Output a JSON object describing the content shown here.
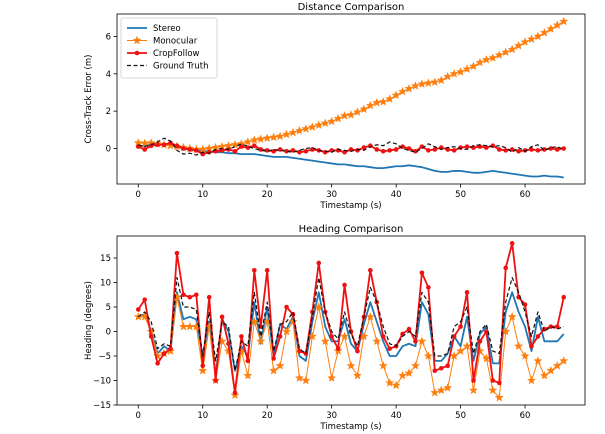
{
  "chart_data": [
    {
      "type": "line",
      "title": "Distance Comparison",
      "xlabel": "Timestamp (s)",
      "ylabel": "Cross-Track Error (m)",
      "xlim": [
        -3.3,
        69.3
      ],
      "ylim": [
        -1.9,
        7.2
      ],
      "xticks": [
        0,
        10,
        20,
        30,
        40,
        50,
        60
      ],
      "yticks": [
        0,
        2,
        4,
        6
      ],
      "grid": false,
      "legend": "top-left",
      "x": [
        0,
        1,
        2,
        3,
        4,
        5,
        6,
        7,
        8,
        9,
        10,
        11,
        12,
        13,
        14,
        15,
        16,
        17,
        18,
        19,
        20,
        21,
        22,
        23,
        24,
        25,
        26,
        27,
        28,
        29,
        30,
        31,
        32,
        33,
        34,
        35,
        36,
        37,
        38,
        39,
        40,
        41,
        42,
        43,
        44,
        45,
        46,
        47,
        48,
        49,
        50,
        51,
        52,
        53,
        54,
        55,
        56,
        57,
        58,
        59,
        60,
        61,
        62,
        63,
        64,
        65,
        66
      ],
      "series": [
        {
          "name": "Stereo",
          "color": "#1f77b4",
          "marker": "none",
          "dash": "solid",
          "width": 1.8,
          "values": [
            0.1,
            0.15,
            0.2,
            0.2,
            0.25,
            0.2,
            0.1,
            0.0,
            -0.05,
            -0.1,
            -0.15,
            -0.15,
            -0.2,
            -0.2,
            -0.25,
            -0.25,
            -0.3,
            -0.3,
            -0.3,
            -0.35,
            -0.4,
            -0.45,
            -0.45,
            -0.45,
            -0.5,
            -0.55,
            -0.6,
            -0.65,
            -0.7,
            -0.75,
            -0.8,
            -0.85,
            -0.85,
            -0.9,
            -0.95,
            -0.95,
            -1.0,
            -1.05,
            -1.05,
            -1.0,
            -0.95,
            -0.95,
            -0.9,
            -0.95,
            -1.0,
            -1.1,
            -1.2,
            -1.25,
            -1.25,
            -1.2,
            -1.2,
            -1.25,
            -1.3,
            -1.3,
            -1.25,
            -1.2,
            -1.25,
            -1.3,
            -1.35,
            -1.4,
            -1.45,
            -1.5,
            -1.5,
            -1.45,
            -1.5,
            -1.5,
            -1.55
          ]
        },
        {
          "name": "Monocular",
          "color": "#ff7f0e",
          "marker": "star",
          "dash": "solid",
          "width": 1.0,
          "values": [
            0.3,
            0.28,
            0.3,
            0.25,
            0.2,
            0.15,
            0.1,
            0.05,
            0.0,
            -0.05,
            -0.05,
            0.0,
            0.05,
            0.1,
            0.15,
            0.2,
            0.25,
            0.35,
            0.45,
            0.5,
            0.55,
            0.6,
            0.65,
            0.75,
            0.85,
            0.95,
            1.05,
            1.15,
            1.25,
            1.35,
            1.45,
            1.6,
            1.75,
            1.8,
            1.95,
            2.1,
            2.3,
            2.45,
            2.5,
            2.65,
            2.85,
            3.05,
            3.2,
            3.35,
            3.45,
            3.5,
            3.55,
            3.65,
            3.85,
            4.0,
            4.1,
            4.25,
            4.4,
            4.6,
            4.75,
            4.85,
            5.0,
            5.15,
            5.3,
            5.5,
            5.7,
            5.85,
            6.0,
            6.2,
            6.4,
            6.6,
            6.8
          ]
        },
        {
          "name": "CropFollow",
          "color": "#ee1111",
          "marker": "circle",
          "dash": "solid",
          "width": 1.8,
          "values": [
            0.1,
            -0.05,
            0.15,
            0.2,
            0.2,
            0.3,
            0.15,
            0.0,
            -0.05,
            -0.1,
            -0.3,
            -0.2,
            -0.15,
            -0.1,
            -0.05,
            -0.15,
            0.1,
            0.05,
            0.15,
            -0.05,
            -0.1,
            -0.15,
            -0.05,
            -0.15,
            -0.1,
            -0.2,
            -0.15,
            -0.05,
            -0.1,
            -0.2,
            -0.1,
            -0.1,
            -0.2,
            -0.05,
            -0.1,
            0.05,
            0.15,
            -0.05,
            -0.15,
            -0.1,
            -0.05,
            0.1,
            0.0,
            -0.15,
            0.1,
            -0.1,
            -0.05,
            0.05,
            -0.05,
            -0.1,
            0.05,
            0.1,
            0.05,
            0.1,
            0.05,
            0.15,
            -0.05,
            -0.1,
            -0.05,
            -0.15,
            -0.1,
            -0.05,
            -0.1,
            -0.05,
            0.0,
            -0.05,
            0.0
          ]
        },
        {
          "name": "Ground Truth",
          "color": "#111111",
          "marker": "none",
          "dash": "dashed",
          "width": 1.2,
          "values": [
            0.2,
            0.1,
            0.2,
            0.35,
            0.55,
            0.4,
            -0.1,
            -0.3,
            -0.25,
            -0.35,
            -0.2,
            -0.25,
            -0.05,
            0.0,
            -0.05,
            0.1,
            0.25,
            0.1,
            0.0,
            -0.1,
            -0.15,
            -0.05,
            -0.1,
            -0.15,
            -0.2,
            -0.1,
            0.0,
            0.05,
            -0.1,
            -0.15,
            -0.2,
            -0.05,
            -0.1,
            -0.15,
            -0.05,
            -0.1,
            0.1,
            0.2,
            0.15,
            0.35,
            0.25,
            0.0,
            -0.1,
            -0.2,
            0.0,
            0.25,
            0.1,
            -0.05,
            0.05,
            0.1,
            0.0,
            -0.05,
            0.15,
            0.2,
            0.15,
            0.1,
            0.15,
            0.05,
            -0.2,
            0.05,
            -0.15,
            0.1,
            0.2,
            -0.1,
            0.05,
            0.1,
            -0.05
          ]
        }
      ]
    },
    {
      "type": "line",
      "title": "Heading Comparison",
      "xlabel": "Timestamp (s)",
      "ylabel": "Heading (degrees)",
      "xlim": [
        -3.3,
        69.3
      ],
      "ylim": [
        -15,
        19.5
      ],
      "xticks": [
        0,
        10,
        20,
        30,
        40,
        50,
        60
      ],
      "yticks": [
        -15,
        -10,
        -5,
        0,
        5,
        10,
        15
      ],
      "grid": false,
      "legend": "none",
      "x": [
        0,
        1,
        2,
        3,
        4,
        5,
        6,
        7,
        8,
        9,
        10,
        11,
        12,
        13,
        14,
        15,
        16,
        17,
        18,
        19,
        20,
        21,
        22,
        23,
        24,
        25,
        26,
        27,
        28,
        29,
        30,
        31,
        32,
        33,
        34,
        35,
        36,
        37,
        38,
        39,
        40,
        41,
        42,
        43,
        44,
        45,
        46,
        47,
        48,
        49,
        50,
        51,
        52,
        53,
        54,
        55,
        56,
        57,
        58,
        59,
        60,
        61,
        62,
        63,
        64,
        65,
        66
      ],
      "series": [
        {
          "name": "Stereo",
          "color": "#1f77b4",
          "marker": "none",
          "dash": "solid",
          "width": 1.8,
          "values": [
            3,
            3.5,
            0,
            -4.5,
            -3,
            -4,
            8,
            2.5,
            3,
            2.5,
            -5,
            2,
            -9,
            2.5,
            0,
            -8,
            -3,
            -5,
            6,
            -2.5,
            5,
            -5,
            1.5,
            0.5,
            3,
            -5,
            -6,
            2,
            8,
            1,
            -2,
            -2,
            2.5,
            -2.5,
            -4,
            1.5,
            6,
            2,
            -2,
            -5,
            -5,
            -3,
            -2.5,
            -3,
            6,
            3.5,
            -6,
            -6,
            -4.5,
            -1,
            -3,
            3,
            -6,
            -0.5,
            1,
            -6.5,
            -6.5,
            4,
            8,
            4,
            1,
            -4,
            3,
            -2,
            -2,
            -2,
            -0.5
          ]
        },
        {
          "name": "Monocular",
          "color": "#ff7f0e",
          "marker": "star",
          "dash": "solid",
          "width": 1.0,
          "values": [
            3,
            3,
            0,
            -5,
            -4.5,
            -4,
            7,
            1,
            1,
            1,
            -8,
            1,
            -10,
            -2,
            -4,
            -13,
            -4,
            -9,
            2,
            -2,
            2,
            -8,
            -7,
            0,
            2,
            -9.5,
            -10,
            -1,
            5,
            -2,
            -9.5,
            -4,
            -1,
            -7,
            -9,
            -1,
            3,
            -2,
            -7,
            -10.5,
            -11,
            -9,
            -8.5,
            -7,
            -2,
            -5,
            -12.5,
            -12,
            -11.5,
            -5,
            -4,
            -3,
            -12,
            -4,
            -5.5,
            -12,
            -13.5,
            0,
            3,
            -3,
            -5,
            -10,
            -6,
            -9,
            -8,
            -7,
            -6
          ]
        },
        {
          "name": "CropFollow",
          "color": "#ee1111",
          "marker": "circle",
          "dash": "solid",
          "width": 1.8,
          "values": [
            4.5,
            6.5,
            -1,
            -6.5,
            -4.5,
            -3.5,
            16,
            7.5,
            7,
            7.5,
            -7,
            7,
            -10,
            3,
            -2.5,
            -12.5,
            -1,
            -6,
            12.5,
            1,
            12.5,
            -5.5,
            -1,
            5,
            3.5,
            -4,
            -4.5,
            4,
            14,
            4,
            -1,
            -3.5,
            9.5,
            0,
            -4,
            3,
            12.5,
            6,
            -1,
            -3.5,
            -3,
            -0.5,
            0.5,
            -2,
            12,
            9,
            -8,
            -7.5,
            -7,
            -1,
            1,
            8,
            -10,
            -2,
            0,
            -10,
            -10.5,
            13,
            18,
            7,
            5.5,
            -3,
            -1,
            0.5,
            1,
            1,
            7
          ]
        },
        {
          "name": "Ground Truth",
          "color": "#111111",
          "marker": "none",
          "dash": "dashed",
          "width": 1.2,
          "values": [
            3,
            4,
            2,
            -3.5,
            -2.5,
            -3,
            11,
            5,
            5,
            4.5,
            -5,
            4,
            -6,
            2,
            1,
            -8,
            -2,
            -3,
            8,
            -1,
            6,
            -4,
            1.5,
            2,
            4,
            -3.5,
            -4.5,
            3,
            11,
            4,
            0,
            -1.5,
            4,
            -0.5,
            -3,
            3,
            9,
            6,
            1,
            -2.5,
            -3,
            -1,
            0,
            -1,
            8,
            6,
            -5,
            -5,
            -4.5,
            1,
            2,
            5,
            -4.5,
            0,
            1.5,
            -4,
            -4.5,
            6,
            11,
            8,
            4,
            -1,
            4,
            0,
            1,
            0.5,
            1
          ]
        }
      ]
    }
  ]
}
